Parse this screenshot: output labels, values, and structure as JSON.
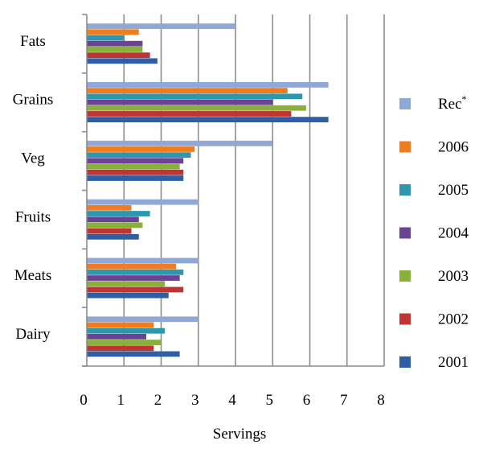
{
  "chart_data": {
    "type": "bar",
    "orientation": "horizontal",
    "title": "",
    "xlabel": "Servings",
    "ylabel": "",
    "xlim": [
      0,
      8
    ],
    "xticks": [
      0,
      1,
      2,
      3,
      4,
      5,
      6,
      7,
      8
    ],
    "grid": "vertical",
    "legend_position": "right",
    "categories": [
      "Fats",
      "Grains",
      "Veg",
      "Fruits",
      "Meats",
      "Dairy"
    ],
    "series": [
      {
        "name": "Rec",
        "superscript": "*",
        "color": "#8FA8D8",
        "values": [
          4.0,
          6.5,
          5.0,
          3.0,
          3.0,
          3.0
        ]
      },
      {
        "name": "2006",
        "color": "#F07C1E",
        "values": [
          1.4,
          5.4,
          2.9,
          1.2,
          2.4,
          1.8
        ]
      },
      {
        "name": "2005",
        "color": "#2C97AE",
        "values": [
          1.0,
          5.8,
          2.8,
          1.7,
          2.6,
          2.1
        ]
      },
      {
        "name": "2004",
        "color": "#6A4396",
        "values": [
          1.5,
          5.0,
          2.6,
          1.4,
          2.5,
          1.6
        ]
      },
      {
        "name": "2003",
        "color": "#88B03A",
        "values": [
          1.5,
          5.9,
          2.5,
          1.5,
          2.1,
          2.0
        ]
      },
      {
        "name": "2002",
        "color": "#BE3533",
        "values": [
          1.7,
          5.5,
          2.6,
          1.2,
          2.6,
          1.8
        ]
      },
      {
        "name": "2001",
        "color": "#2E5FA6",
        "values": [
          1.9,
          6.5,
          2.6,
          1.4,
          2.2,
          2.5
        ]
      }
    ]
  }
}
